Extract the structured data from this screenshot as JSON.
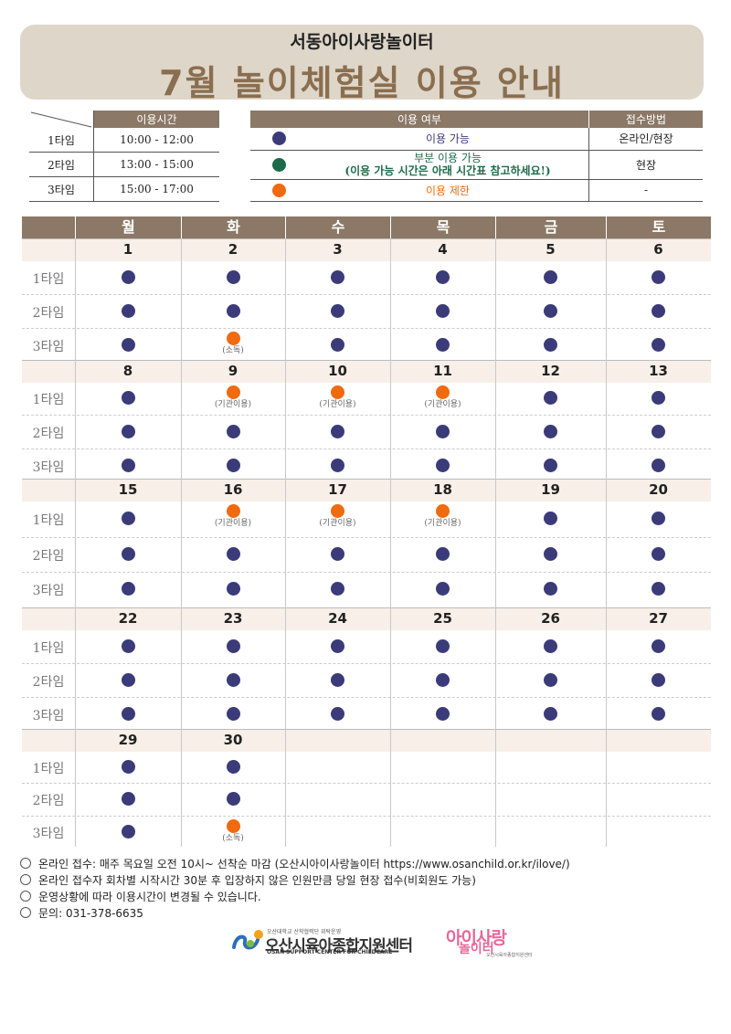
{
  "header": {
    "subtitle": "서동아이사랑놀이터",
    "title": "7월 놀이체험실 이용 안내"
  },
  "time_table": {
    "header": "이용시간",
    "rows": [
      {
        "label": "1타임",
        "time": "10:00 - 12:00"
      },
      {
        "label": "2타임",
        "time": "13:00 - 15:00"
      },
      {
        "label": "3타임",
        "time": "15:00 - 17:00"
      }
    ]
  },
  "usage_table": {
    "header_usage": "이용 여부",
    "header_method": "접수방법",
    "rows": [
      {
        "color": "#3b3b7a",
        "label": "이용 가능",
        "label2": "",
        "method": "온라인/현장",
        "text_color": "#3b3b7a"
      },
      {
        "color": "#1e6b4a",
        "label": "부분 이용 가능",
        "label2": "(이용 가능 시간은 아래 시간표 참고하세요!)",
        "method": "현장",
        "text_color": "#1e6b4a"
      },
      {
        "color": "#f06a10",
        "label": "이용 제한",
        "label2": "",
        "method": "-",
        "text_color": "#f06a10"
      }
    ]
  },
  "calendar": {
    "days": [
      "월",
      "화",
      "수",
      "목",
      "금",
      "토"
    ],
    "slot_labels": [
      "1타임",
      "2타임",
      "3타임"
    ],
    "colors": {
      "available": "#3b3b7a",
      "restricted": "#f06a10"
    },
    "weeks": [
      {
        "dates": [
          "1",
          "2",
          "3",
          "4",
          "5",
          "6"
        ],
        "slots": [
          [
            [
              "A",
              ""
            ],
            [
              "A",
              ""
            ],
            [
              "A",
              ""
            ],
            [
              "A",
              ""
            ],
            [
              "A",
              ""
            ],
            [
              "A",
              ""
            ]
          ],
          [
            [
              "A",
              ""
            ],
            [
              "A",
              ""
            ],
            [
              "A",
              ""
            ],
            [
              "A",
              ""
            ],
            [
              "A",
              ""
            ],
            [
              "A",
              ""
            ]
          ],
          [
            [
              "A",
              ""
            ],
            [
              "R",
              "(소독)"
            ],
            [
              "A",
              ""
            ],
            [
              "A",
              ""
            ],
            [
              "A",
              ""
            ],
            [
              "A",
              ""
            ]
          ]
        ]
      },
      {
        "dates": [
          "8",
          "9",
          "10",
          "11",
          "12",
          "13"
        ],
        "slots": [
          [
            [
              "A",
              ""
            ],
            [
              "R",
              "(기관이용)"
            ],
            [
              "R",
              "(기관이용)"
            ],
            [
              "R",
              "(기관이용)"
            ],
            [
              "A",
              ""
            ],
            [
              "A",
              ""
            ]
          ],
          [
            [
              "A",
              ""
            ],
            [
              "A",
              ""
            ],
            [
              "A",
              ""
            ],
            [
              "A",
              ""
            ],
            [
              "A",
              ""
            ],
            [
              "A",
              ""
            ]
          ],
          [
            [
              "A",
              ""
            ],
            [
              "A",
              ""
            ],
            [
              "A",
              ""
            ],
            [
              "A",
              ""
            ],
            [
              "A",
              ""
            ],
            [
              "A",
              ""
            ]
          ]
        ]
      },
      {
        "dates": [
          "15",
          "16",
          "17",
          "18",
          "19",
          "20"
        ],
        "slots": [
          [
            [
              "A",
              ""
            ],
            [
              "R",
              "(기관이용)"
            ],
            [
              "R",
              "(기관이용)"
            ],
            [
              "R",
              "(기관이용)"
            ],
            [
              "A",
              ""
            ],
            [
              "A",
              ""
            ]
          ],
          [
            [
              "A",
              ""
            ],
            [
              "A",
              ""
            ],
            [
              "A",
              ""
            ],
            [
              "A",
              ""
            ],
            [
              "A",
              ""
            ],
            [
              "A",
              ""
            ]
          ],
          [
            [
              "A",
              ""
            ],
            [
              "A",
              ""
            ],
            [
              "A",
              ""
            ],
            [
              "A",
              ""
            ],
            [
              "A",
              ""
            ],
            [
              "A",
              ""
            ]
          ]
        ]
      },
      {
        "dates": [
          "22",
          "23",
          "24",
          "25",
          "26",
          "27"
        ],
        "slots": [
          [
            [
              "A",
              ""
            ],
            [
              "A",
              ""
            ],
            [
              "A",
              ""
            ],
            [
              "A",
              ""
            ],
            [
              "A",
              ""
            ],
            [
              "A",
              ""
            ]
          ],
          [
            [
              "A",
              ""
            ],
            [
              "A",
              ""
            ],
            [
              "A",
              ""
            ],
            [
              "A",
              ""
            ],
            [
              "A",
              ""
            ],
            [
              "A",
              ""
            ]
          ],
          [
            [
              "A",
              ""
            ],
            [
              "A",
              ""
            ],
            [
              "A",
              ""
            ],
            [
              "A",
              ""
            ],
            [
              "A",
              ""
            ],
            [
              "A",
              ""
            ]
          ]
        ]
      },
      {
        "dates": [
          "29",
          "30",
          "",
          "",
          "",
          ""
        ],
        "slots": [
          [
            [
              "A",
              ""
            ],
            [
              "A",
              ""
            ],
            [
              "",
              ""
            ],
            [
              "",
              ""
            ],
            [
              "",
              ""
            ],
            [
              "",
              ""
            ]
          ],
          [
            [
              "A",
              ""
            ],
            [
              "A",
              ""
            ],
            [
              "",
              ""
            ],
            [
              "",
              ""
            ],
            [
              "",
              ""
            ],
            [
              "",
              ""
            ]
          ],
          [
            [
              "A",
              ""
            ],
            [
              "R",
              "(소독)"
            ],
            [
              "",
              ""
            ],
            [
              "",
              ""
            ],
            [
              "",
              ""
            ],
            [
              "",
              ""
            ]
          ]
        ]
      }
    ]
  },
  "notes": [
    "온라인 접수: 매주 목요일 오전 10시~ 선착순 마감 (오산시아이사랑놀이터 https://www.osanchild.or.kr/ilove/)",
    "온라인 접수자 회차별 시작시간 30분 후 입장하지 않은 인원만큼 당일 현장 접수(비회원도 가능)",
    "운영상황에 따라 이용시간이 변경될 수 있습니다.",
    "문의: 031-378-6635"
  ],
  "logos": {
    "center_small": "오산대학교 산학협력단 위탁운영",
    "center_name": "오산시육아종합지원센터",
    "center_en": "OSAN SUPPORT CENTER FOR CHILDCARE",
    "play_top": "아이사랑",
    "play_bottom": "놀이터",
    "play_small": "오산시육아종합지원센터"
  }
}
